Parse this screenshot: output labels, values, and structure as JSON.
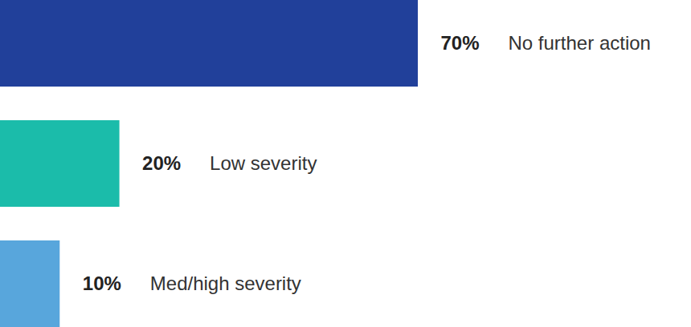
{
  "chart_data": {
    "type": "bar",
    "orientation": "horizontal",
    "categories": [
      "No further action",
      "Low severity",
      "Med/high severity"
    ],
    "values": [
      70,
      20,
      10
    ],
    "value_labels": [
      "70%",
      "20%",
      "10%"
    ],
    "colors": [
      "#21409a",
      "#1bbcaa",
      "#58a6dc"
    ],
    "data_labels": true,
    "tick_labels": false
  }
}
